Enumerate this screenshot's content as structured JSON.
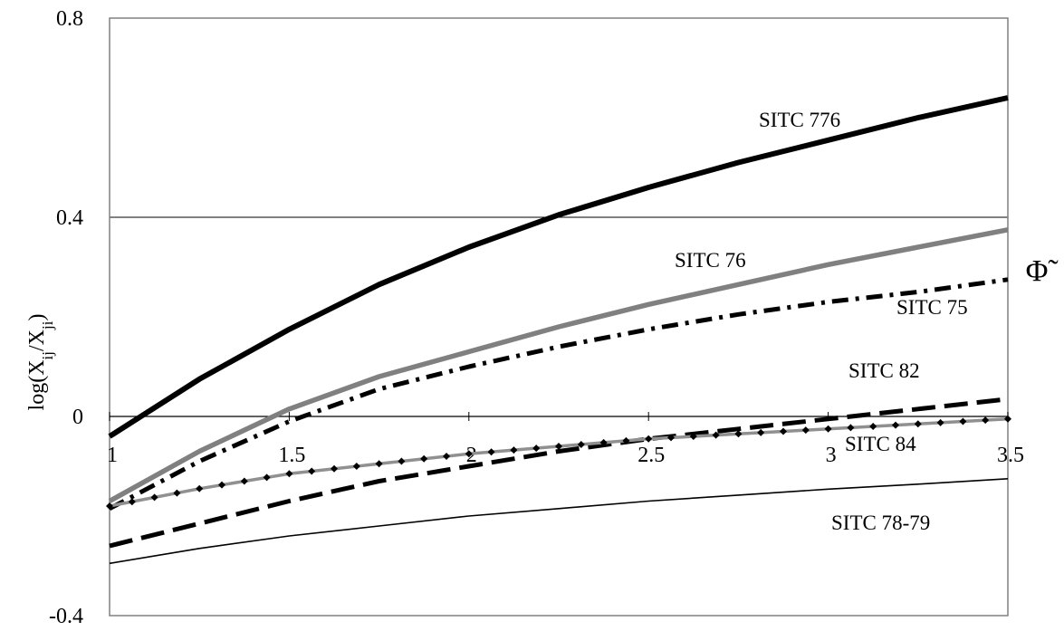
{
  "chart_data": {
    "type": "line",
    "ylabel": "log(X",
    "ylabel_sub1": "ij",
    "ylabel_mid": "/X",
    "ylabel_sub2": "ji",
    "ylabel_end": ")",
    "xlabel": "Φ̃",
    "xlim": [
      1,
      3.5
    ],
    "ylim": [
      -0.4,
      0.8
    ],
    "x_ticks": [
      "1",
      "1.5",
      "2",
      "2.5",
      "3",
      "3.5"
    ],
    "y_ticks": [
      "0.8",
      "0.4",
      "0",
      "-0.4"
    ],
    "gridlines_y": [
      0.4
    ],
    "x": [
      1,
      1.25,
      1.5,
      1.75,
      2,
      2.25,
      2.5,
      2.75,
      3,
      3.25,
      3.5
    ],
    "series": [
      {
        "name": "SITC 776",
        "color": "#000000",
        "style": "thick-solid",
        "values": [
          -0.04,
          0.075,
          0.175,
          0.265,
          0.34,
          0.405,
          0.46,
          0.51,
          0.555,
          0.6,
          0.64
        ]
      },
      {
        "name": "SITC 76",
        "color": "#808080",
        "style": "thick-solid-gray",
        "values": [
          -0.17,
          -0.07,
          0.015,
          0.08,
          0.13,
          0.18,
          0.225,
          0.265,
          0.305,
          0.34,
          0.375
        ]
      },
      {
        "name": "SITC 75",
        "color": "#000000",
        "style": "dash-dot",
        "values": [
          -0.185,
          -0.09,
          -0.01,
          0.055,
          0.1,
          0.14,
          0.175,
          0.205,
          0.23,
          0.25,
          0.275
        ]
      },
      {
        "name": "SITC 82",
        "color": "#000000",
        "style": "long-dash",
        "values": [
          -0.26,
          -0.215,
          -0.17,
          -0.13,
          -0.1,
          -0.07,
          -0.045,
          -0.025,
          -0.005,
          0.015,
          0.035
        ]
      },
      {
        "name": "SITC 84",
        "color": "#909090",
        "style": "gray-with-diamonds",
        "values": [
          -0.18,
          -0.145,
          -0.115,
          -0.095,
          -0.075,
          -0.06,
          -0.045,
          -0.035,
          -0.025,
          -0.015,
          -0.005
        ]
      },
      {
        "name": "SITC 78-79",
        "color": "#000000",
        "style": "thin-solid",
        "values": [
          -0.295,
          -0.265,
          -0.24,
          -0.22,
          -0.2,
          -0.185,
          -0.17,
          -0.158,
          -0.146,
          -0.136,
          -0.125
        ]
      }
    ]
  }
}
